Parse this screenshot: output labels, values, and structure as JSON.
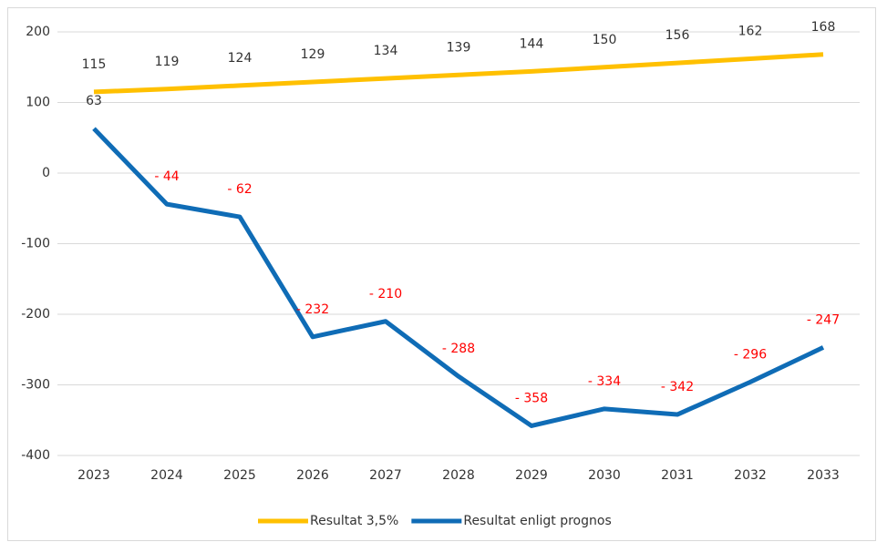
{
  "chart_data": {
    "type": "line",
    "categories": [
      "2023",
      "2024",
      "2025",
      "2026",
      "2027",
      "2028",
      "2029",
      "2030",
      "2031",
      "2032",
      "2033"
    ],
    "series": [
      {
        "name": "Resultat 3,5%",
        "color": "#ffc000",
        "values": [
          115,
          119,
          124,
          129,
          134,
          139,
          144,
          150,
          156,
          162,
          168
        ]
      },
      {
        "name": "Resultat enligt prognos",
        "color": "#0f6cb6",
        "values": [
          63,
          -44,
          -62,
          -232,
          -210,
          -288,
          -358,
          -334,
          -342,
          -296,
          -247
        ],
        "value_labels": [
          "63",
          "- 44",
          "- 62",
          "- 232",
          "- 210",
          "- 288",
          "- 358",
          "- 334",
          "- 342",
          "- 296",
          "- 247"
        ]
      }
    ],
    "ylim": [
      -400,
      200
    ],
    "yticks": [
      -400,
      -300,
      -200,
      -100,
      0,
      100,
      200
    ],
    "grid": true,
    "legend": "bottom"
  }
}
